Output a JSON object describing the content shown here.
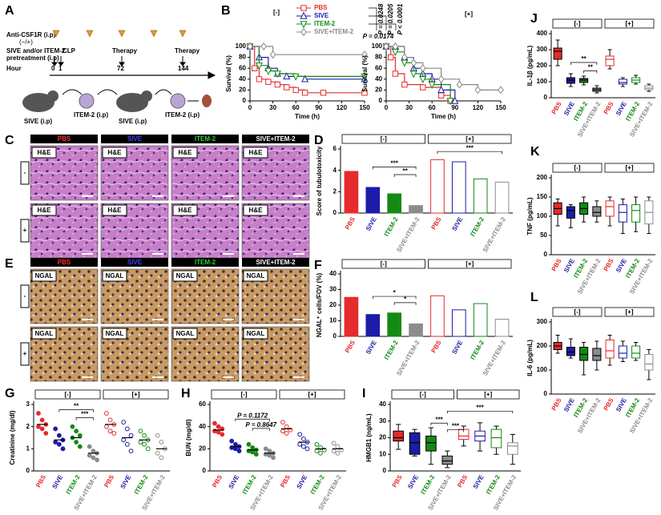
{
  "schema": {
    "letter": "A",
    "agent": "Anti-CSF1R (i.p)",
    "agent_sign": "(−/+)",
    "pre1": "SIVE and/or ITEM-2",
    "pre2": "pretreatment (i.p)",
    "clp": "CLP",
    "therapy": "Therapy",
    "hour": "Hour",
    "h0": "0",
    "h1": "1",
    "h72": "72",
    "h144": "144",
    "sive": "SIVE (i.p)",
    "item": "ITEM-2 (i.p)"
  },
  "histology": {
    "columns": [
      "PBS",
      "SIVE",
      "ITEM-2",
      "SIVE+ITEM-2"
    ],
    "column_colors": [
      "#ff3030",
      "#4040ff",
      "#30d030",
      "#ffffff"
    ],
    "panels": [
      {
        "letter": "C",
        "stain": "H&E",
        "rows": [
          "-",
          "+"
        ]
      },
      {
        "letter": "E",
        "stain": "NGAL",
        "rows": [
          "-",
          "+"
        ]
      }
    ]
  },
  "chart_data": [
    {
      "type": "line",
      "panel": "B",
      "groups": [
        "[-]"
      ],
      "xlabel": "Time (h)",
      "ylabel": "Survival (%)",
      "xlim": [
        0,
        150
      ],
      "xticks": [
        0,
        30,
        60,
        90,
        120,
        150
      ],
      "ylim": [
        0,
        100
      ],
      "yticks": [
        0,
        20,
        40,
        60,
        80,
        100
      ],
      "annotations": [
        "P = 0.0248",
        "P = 0.0205",
        "P < 0.0001",
        "P = 0.0174"
      ],
      "series": [
        {
          "name": "PBS",
          "color": "#e52b2b",
          "marker": "square",
          "x": [
            0,
            6,
            12,
            24,
            36,
            48,
            60,
            72,
            96,
            150
          ],
          "values": [
            100,
            60,
            40,
            35,
            30,
            25,
            20,
            15,
            15,
            15
          ]
        },
        {
          "name": "SIVE",
          "color": "#1c1ca8",
          "marker": "triangle",
          "x": [
            0,
            12,
            24,
            36,
            48,
            72,
            150
          ],
          "values": [
            100,
            80,
            60,
            50,
            45,
            40,
            40
          ]
        },
        {
          "name": "ITEM-2",
          "color": "#138a13",
          "marker": "triangle-down",
          "x": [
            0,
            12,
            24,
            36,
            60,
            150
          ],
          "values": [
            100,
            65,
            55,
            50,
            45,
            45
          ]
        },
        {
          "name": "SIVE+ITEM-2",
          "color": "#888888",
          "marker": "diamond",
          "x": [
            0,
            18,
            30,
            150
          ],
          "values": [
            100,
            100,
            85,
            85
          ]
        }
      ]
    },
    {
      "type": "line",
      "groups": [
        "[+]"
      ],
      "xlabel": "Time (h)",
      "ylabel": "Survival (%)",
      "xlim": [
        0,
        150
      ],
      "xticks": [
        0,
        30,
        60,
        90,
        120,
        150
      ],
      "ylim": [
        0,
        100
      ],
      "yticks": [
        0,
        20,
        40,
        60,
        80,
        100
      ],
      "series": [
        {
          "color": "#e52b2b",
          "marker": "square",
          "x": [
            0,
            6,
            12,
            24,
            48,
            72,
            84
          ],
          "values": [
            100,
            80,
            50,
            30,
            25,
            10,
            0
          ]
        },
        {
          "color": "#1c1ca8",
          "marker": "triangle",
          "x": [
            0,
            12,
            24,
            36,
            48,
            60,
            72,
            90
          ],
          "values": [
            100,
            100,
            80,
            60,
            50,
            40,
            20,
            0
          ]
        },
        {
          "color": "#138a13",
          "marker": "triangle-down",
          "x": [
            0,
            12,
            24,
            36,
            48,
            60,
            84
          ],
          "values": [
            100,
            90,
            70,
            50,
            40,
            30,
            0
          ]
        },
        {
          "color": "#888888",
          "marker": "diamond",
          "x": [
            0,
            12,
            24,
            36,
            48,
            72,
            96,
            120,
            150
          ],
          "values": [
            100,
            100,
            80,
            70,
            60,
            40,
            30,
            20,
            20
          ]
        }
      ]
    },
    {
      "type": "bar",
      "panel": "D",
      "groups": [
        "[-]",
        "[+]"
      ],
      "ylabel": "Score of tubulotoxicity",
      "categories": [
        "PBS",
        "SIVE",
        "ITEM-2",
        "SIVE+ITEM-2",
        "PBS",
        "SIVE",
        "ITEM-2",
        "SIVE+ITEM-2"
      ],
      "colors": [
        "#e52b2b",
        "#1c1ca8",
        "#138a13",
        "#8c8c8c",
        "#e52b2b",
        "#1c1ca8",
        "#138a13",
        "#8c8c8c"
      ],
      "filled": [
        true,
        true,
        true,
        true,
        false,
        false,
        false,
        false
      ],
      "values": [
        3.9,
        2.4,
        1.8,
        0.7,
        5.0,
        4.8,
        3.2,
        2.9
      ],
      "ylim": [
        0,
        6
      ],
      "yticks": [
        0,
        2,
        4,
        6
      ],
      "annotations": [
        "***",
        "**",
        "***"
      ]
    },
    {
      "type": "bar",
      "panel": "F",
      "groups": [
        "[-]",
        "[+]"
      ],
      "ylabel": "NGAL⁺ cells/FOV (%)",
      "categories": [
        "PBS",
        "SIVE",
        "ITEM-2",
        "SIVE+ITEM-2",
        "PBS",
        "SIVE",
        "ITEM-2",
        "SIVE+ITEM-2"
      ],
      "colors": [
        "#e52b2b",
        "#1c1ca8",
        "#138a13",
        "#8c8c8c",
        "#e52b2b",
        "#1c1ca8",
        "#138a13",
        "#8c8c8c"
      ],
      "filled": [
        true,
        true,
        true,
        true,
        false,
        false,
        false,
        false
      ],
      "values": [
        25,
        14,
        15,
        8,
        26,
        17,
        21,
        11
      ],
      "ylim": [
        0,
        40
      ],
      "yticks": [
        0,
        10,
        20,
        30,
        40
      ],
      "annotations": [
        "*",
        "*"
      ]
    },
    {
      "type": "dot",
      "panel": "G",
      "groups": [
        "[-]",
        "[+]"
      ],
      "ylabel": "Creatinine (mg/dl)",
      "categories": [
        "PBS",
        "SIVE",
        "ITEM-2",
        "SIVE+ITEM-2",
        "PBS",
        "SIVE",
        "ITEM-2",
        "SIVE+ITEM-2"
      ],
      "colors": [
        "#e52b2b",
        "#1c1ca8",
        "#138a13",
        "#8c8c8c",
        "#e52b2b",
        "#1c1ca8",
        "#138a13",
        "#8c8c8c"
      ],
      "filled": [
        true,
        true,
        true,
        true,
        false,
        false,
        false,
        false
      ],
      "values": [
        2.1,
        1.4,
        1.5,
        0.8,
        2.1,
        1.5,
        1.4,
        1.0
      ],
      "points": [
        [
          2.6,
          2.3,
          2.1,
          2.0,
          1.9,
          1.7
        ],
        [
          1.9,
          1.6,
          1.4,
          1.3,
          1.2,
          1.0
        ],
        [
          2.0,
          1.8,
          1.6,
          1.5,
          1.3,
          1.1
        ],
        [
          1.1,
          0.9,
          0.8,
          0.7,
          0.6,
          0.5
        ],
        [
          2.6,
          2.3,
          2.1,
          2.0,
          1.8,
          1.7
        ],
        [
          2.2,
          1.9,
          1.6,
          1.4,
          1.2,
          0.9
        ],
        [
          1.8,
          1.6,
          1.4,
          1.3,
          1.2,
          1.0
        ],
        [
          1.6,
          1.3,
          1.0,
          0.8,
          0.6
        ]
      ],
      "ylim": [
        0,
        3
      ],
      "yticks": [
        0,
        1,
        2,
        3
      ],
      "annotations": [
        "**",
        "***"
      ]
    },
    {
      "type": "dot",
      "panel": "H",
      "groups": [
        "[-]",
        "[+]"
      ],
      "ylabel": "BUN (mg/dl)",
      "categories": [
        "PBS",
        "SIVE",
        "ITEM-2",
        "SIVE+ITEM-2",
        "PBS",
        "SIVE",
        "ITEM-2",
        "SIVE+ITEM-2"
      ],
      "colors": [
        "#e52b2b",
        "#1c1ca8",
        "#138a13",
        "#8c8c8c",
        "#e52b2b",
        "#1c1ca8",
        "#138a13",
        "#8c8c8c"
      ],
      "filled": [
        true,
        true,
        true,
        true,
        false,
        false,
        false,
        false
      ],
      "values": [
        37,
        22,
        19,
        16,
        38,
        26,
        20,
        20
      ],
      "points": [
        [
          43,
          40,
          38,
          36,
          35,
          33
        ],
        [
          27,
          24,
          22,
          21,
          20,
          18
        ],
        [
          24,
          21,
          19,
          18,
          17,
          15
        ],
        [
          20,
          18,
          16,
          15,
          14,
          12
        ],
        [
          44,
          40,
          37,
          36,
          34
        ],
        [
          33,
          29,
          26,
          24,
          22,
          20
        ],
        [
          24,
          21,
          19,
          18,
          16
        ],
        [
          25,
          22,
          19,
          18,
          16
        ]
      ],
      "ylim": [
        0,
        60
      ],
      "yticks": [
        0,
        20,
        40,
        60
      ],
      "annotations": [
        "P = 0.1172",
        "P = 0.8647"
      ]
    },
    {
      "type": "box",
      "panel": "I",
      "groups": [
        "[-]",
        "[+]"
      ],
      "ylabel": "HMGB1 (ng/mL)",
      "categories": [
        "PBS",
        "SIVE",
        "ITEM-2",
        "SIVE+ITEM-2",
        "PBS",
        "SIVE",
        "ITEM-2",
        "SIVE+ITEM-2"
      ],
      "colors": [
        "#e52b2b",
        "#1c1ca8",
        "#138a13",
        "#8c8c8c",
        "#e52b2b",
        "#1c1ca8",
        "#138a13",
        "#8c8c8c"
      ],
      "filled": [
        true,
        true,
        true,
        true,
        false,
        false,
        false,
        false
      ],
      "values": [
        [
          13,
          18,
          20,
          24,
          28
        ],
        [
          9,
          10,
          17,
          23,
          25
        ],
        [
          4,
          12,
          17,
          21,
          26
        ],
        [
          2,
          4,
          6,
          9,
          12
        ],
        [
          15,
          19,
          21,
          25,
          27
        ],
        [
          12,
          18,
          21,
          24,
          29
        ],
        [
          10,
          14,
          20,
          25,
          27
        ],
        [
          4,
          10,
          15,
          17,
          22
        ]
      ],
      "ylim": [
        0,
        40
      ],
      "yticks": [
        0,
        10,
        20,
        30,
        40
      ],
      "annotations": [
        "***",
        "***",
        "***"
      ]
    },
    {
      "type": "box",
      "panel": "J",
      "groups": [
        "[-]",
        "[+]"
      ],
      "ylabel": "IL-1β (pg/mL)",
      "categories": [
        "PBS",
        "SIVE",
        "ITEM-2",
        "SIVE+ITEM-2",
        "PBS",
        "SIVE",
        "ITEM-2",
        "SIVE+ITEM-2"
      ],
      "colors": [
        "#e52b2b",
        "#1c1ca8",
        "#138a13",
        "#8c8c8c",
        "#e52b2b",
        "#1c1ca8",
        "#138a13",
        "#8c8c8c"
      ],
      "filled": [
        true,
        true,
        true,
        true,
        false,
        false,
        false,
        false
      ],
      "values": [
        [
          200,
          240,
          290,
          310,
          360
        ],
        [
          70,
          90,
          110,
          125,
          150
        ],
        [
          80,
          95,
          110,
          120,
          135
        ],
        [
          30,
          40,
          50,
          60,
          75
        ],
        [
          180,
          200,
          240,
          260,
          300
        ],
        [
          70,
          85,
          95,
          115,
          125
        ],
        [
          85,
          95,
          110,
          125,
          140
        ],
        [
          40,
          50,
          60,
          75,
          85
        ]
      ],
      "ylim": [
        0,
        400
      ],
      "yticks": [
        0,
        100,
        200,
        300,
        400
      ],
      "annotations": [
        "**",
        "**"
      ]
    },
    {
      "type": "box",
      "panel": "K",
      "groups": [
        "[-]",
        "[+]"
      ],
      "ylabel": "TNF (pg/mL)",
      "categories": [
        "PBS",
        "SIVE",
        "ITEM-2",
        "SIVE+ITEM-2",
        "PBS",
        "SIVE",
        "ITEM-2",
        "SIVE+ITEM-2"
      ],
      "colors": [
        "#e52b2b",
        "#1c1ca8",
        "#138a13",
        "#8c8c8c",
        "#e52b2b",
        "#1c1ca8",
        "#138a13",
        "#8c8c8c"
      ],
      "filled": [
        true,
        true,
        true,
        true,
        false,
        false,
        false,
        false
      ],
      "values": [
        [
          75,
          105,
          120,
          135,
          145
        ],
        [
          70,
          95,
          115,
          125,
          130
        ],
        [
          85,
          105,
          120,
          135,
          150
        ],
        [
          85,
          100,
          110,
          125,
          140
        ],
        [
          75,
          100,
          125,
          140,
          150
        ],
        [
          55,
          85,
          110,
          130,
          145
        ],
        [
          60,
          85,
          115,
          130,
          150
        ],
        [
          55,
          80,
          110,
          140,
          150
        ]
      ],
      "ylim": [
        0,
        200
      ],
      "yticks": [
        0,
        50,
        100,
        150,
        200
      ]
    },
    {
      "type": "box",
      "panel": "L",
      "groups": [
        "[-]",
        "[+]"
      ],
      "ylabel": "IL-6 (pg/mL)",
      "categories": [
        "PBS",
        "SIVE",
        "ITEM-2",
        "SIVE+ITEM-2",
        "PBS",
        "SIVE",
        "ITEM-2",
        "SIVE+ITEM-2"
      ],
      "colors": [
        "#e52b2b",
        "#1c1ca8",
        "#138a13",
        "#8c8c8c",
        "#e52b2b",
        "#1c1ca8",
        "#138a13",
        "#8c8c8c"
      ],
      "filled": [
        true,
        true,
        true,
        true,
        false,
        false,
        false,
        false
      ],
      "values": [
        [
          170,
          185,
          200,
          215,
          245
        ],
        [
          150,
          160,
          175,
          195,
          230
        ],
        [
          80,
          140,
          165,
          195,
          215
        ],
        [
          100,
          140,
          160,
          190,
          220
        ],
        [
          120,
          150,
          180,
          225,
          245
        ],
        [
          135,
          150,
          170,
          200,
          220
        ],
        [
          140,
          150,
          170,
          200,
          215
        ],
        [
          60,
          100,
          125,
          165,
          185
        ]
      ],
      "ylim": [
        0,
        300
      ],
      "yticks": [
        0,
        100,
        200,
        300
      ]
    }
  ]
}
